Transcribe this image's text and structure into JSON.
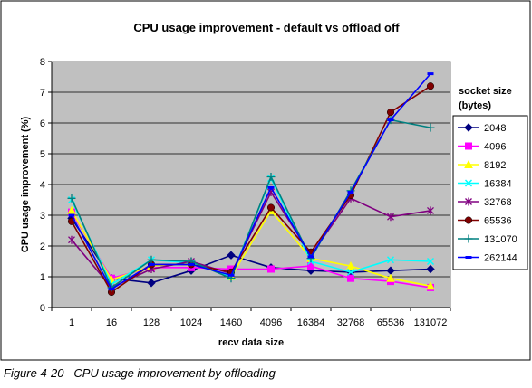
{
  "caption": "Figure 4-20   CPU usage improvement by offloading",
  "colors": {
    "chart_area_bg": "#ffffff",
    "plot_bg": "#c0c0c0",
    "gridline": "#000000"
  },
  "chart_data": {
    "type": "line",
    "title": "CPU usage improvement - default vs offload off",
    "xlabel": "recv data size",
    "ylabel": "CPU usage improvement (%)",
    "categories": [
      "1",
      "16",
      "128",
      "1024",
      "1460",
      "4096",
      "16384",
      "32768",
      "65536",
      "131072"
    ],
    "ylim": [
      0,
      8
    ],
    "yticks": [
      "0",
      "1",
      "2",
      "3",
      "4",
      "5",
      "6",
      "7",
      "8"
    ],
    "grid": true,
    "legend_title": "socket size (bytes)",
    "legend_position": "right",
    "series": [
      {
        "name": "2048",
        "color": "#000080",
        "marker": "diamond",
        "values": [
          2.9,
          0.95,
          0.8,
          1.2,
          1.7,
          1.3,
          1.2,
          1.15,
          1.2,
          1.25
        ]
      },
      {
        "name": "4096",
        "color": "#ff00ff",
        "marker": "square",
        "values": [
          3.1,
          0.95,
          1.3,
          1.3,
          1.25,
          1.25,
          1.35,
          0.95,
          0.85,
          0.65
        ]
      },
      {
        "name": "8192",
        "color": "#ffff00",
        "marker": "triangle",
        "values": [
          3.15,
          0.9,
          1.35,
          1.45,
          1.0,
          3.15,
          1.6,
          1.35,
          0.95,
          0.7
        ]
      },
      {
        "name": "16384",
        "color": "#00ffff",
        "marker": "x",
        "values": [
          3.5,
          0.75,
          1.55,
          1.45,
          1.0,
          4.2,
          1.5,
          1.15,
          1.55,
          1.5
        ]
      },
      {
        "name": "32768",
        "color": "#800080",
        "marker": "star",
        "values": [
          2.2,
          0.65,
          1.25,
          1.5,
          1.1,
          3.75,
          1.7,
          3.55,
          2.95,
          3.15
        ]
      },
      {
        "name": "65536",
        "color": "#800000",
        "marker": "circle",
        "values": [
          2.8,
          0.5,
          1.4,
          1.4,
          1.15,
          3.25,
          1.8,
          3.65,
          6.35,
          7.2
        ]
      },
      {
        "name": "131070",
        "color": "#008080",
        "marker": "plus",
        "values": [
          3.55,
          0.65,
          1.55,
          1.5,
          0.95,
          4.25,
          1.6,
          3.8,
          6.1,
          5.85
        ]
      },
      {
        "name": "262144",
        "color": "#0000ff",
        "marker": "dash",
        "values": [
          3.0,
          0.6,
          1.4,
          1.4,
          1.05,
          3.9,
          1.65,
          3.75,
          6.1,
          7.6
        ]
      }
    ]
  }
}
